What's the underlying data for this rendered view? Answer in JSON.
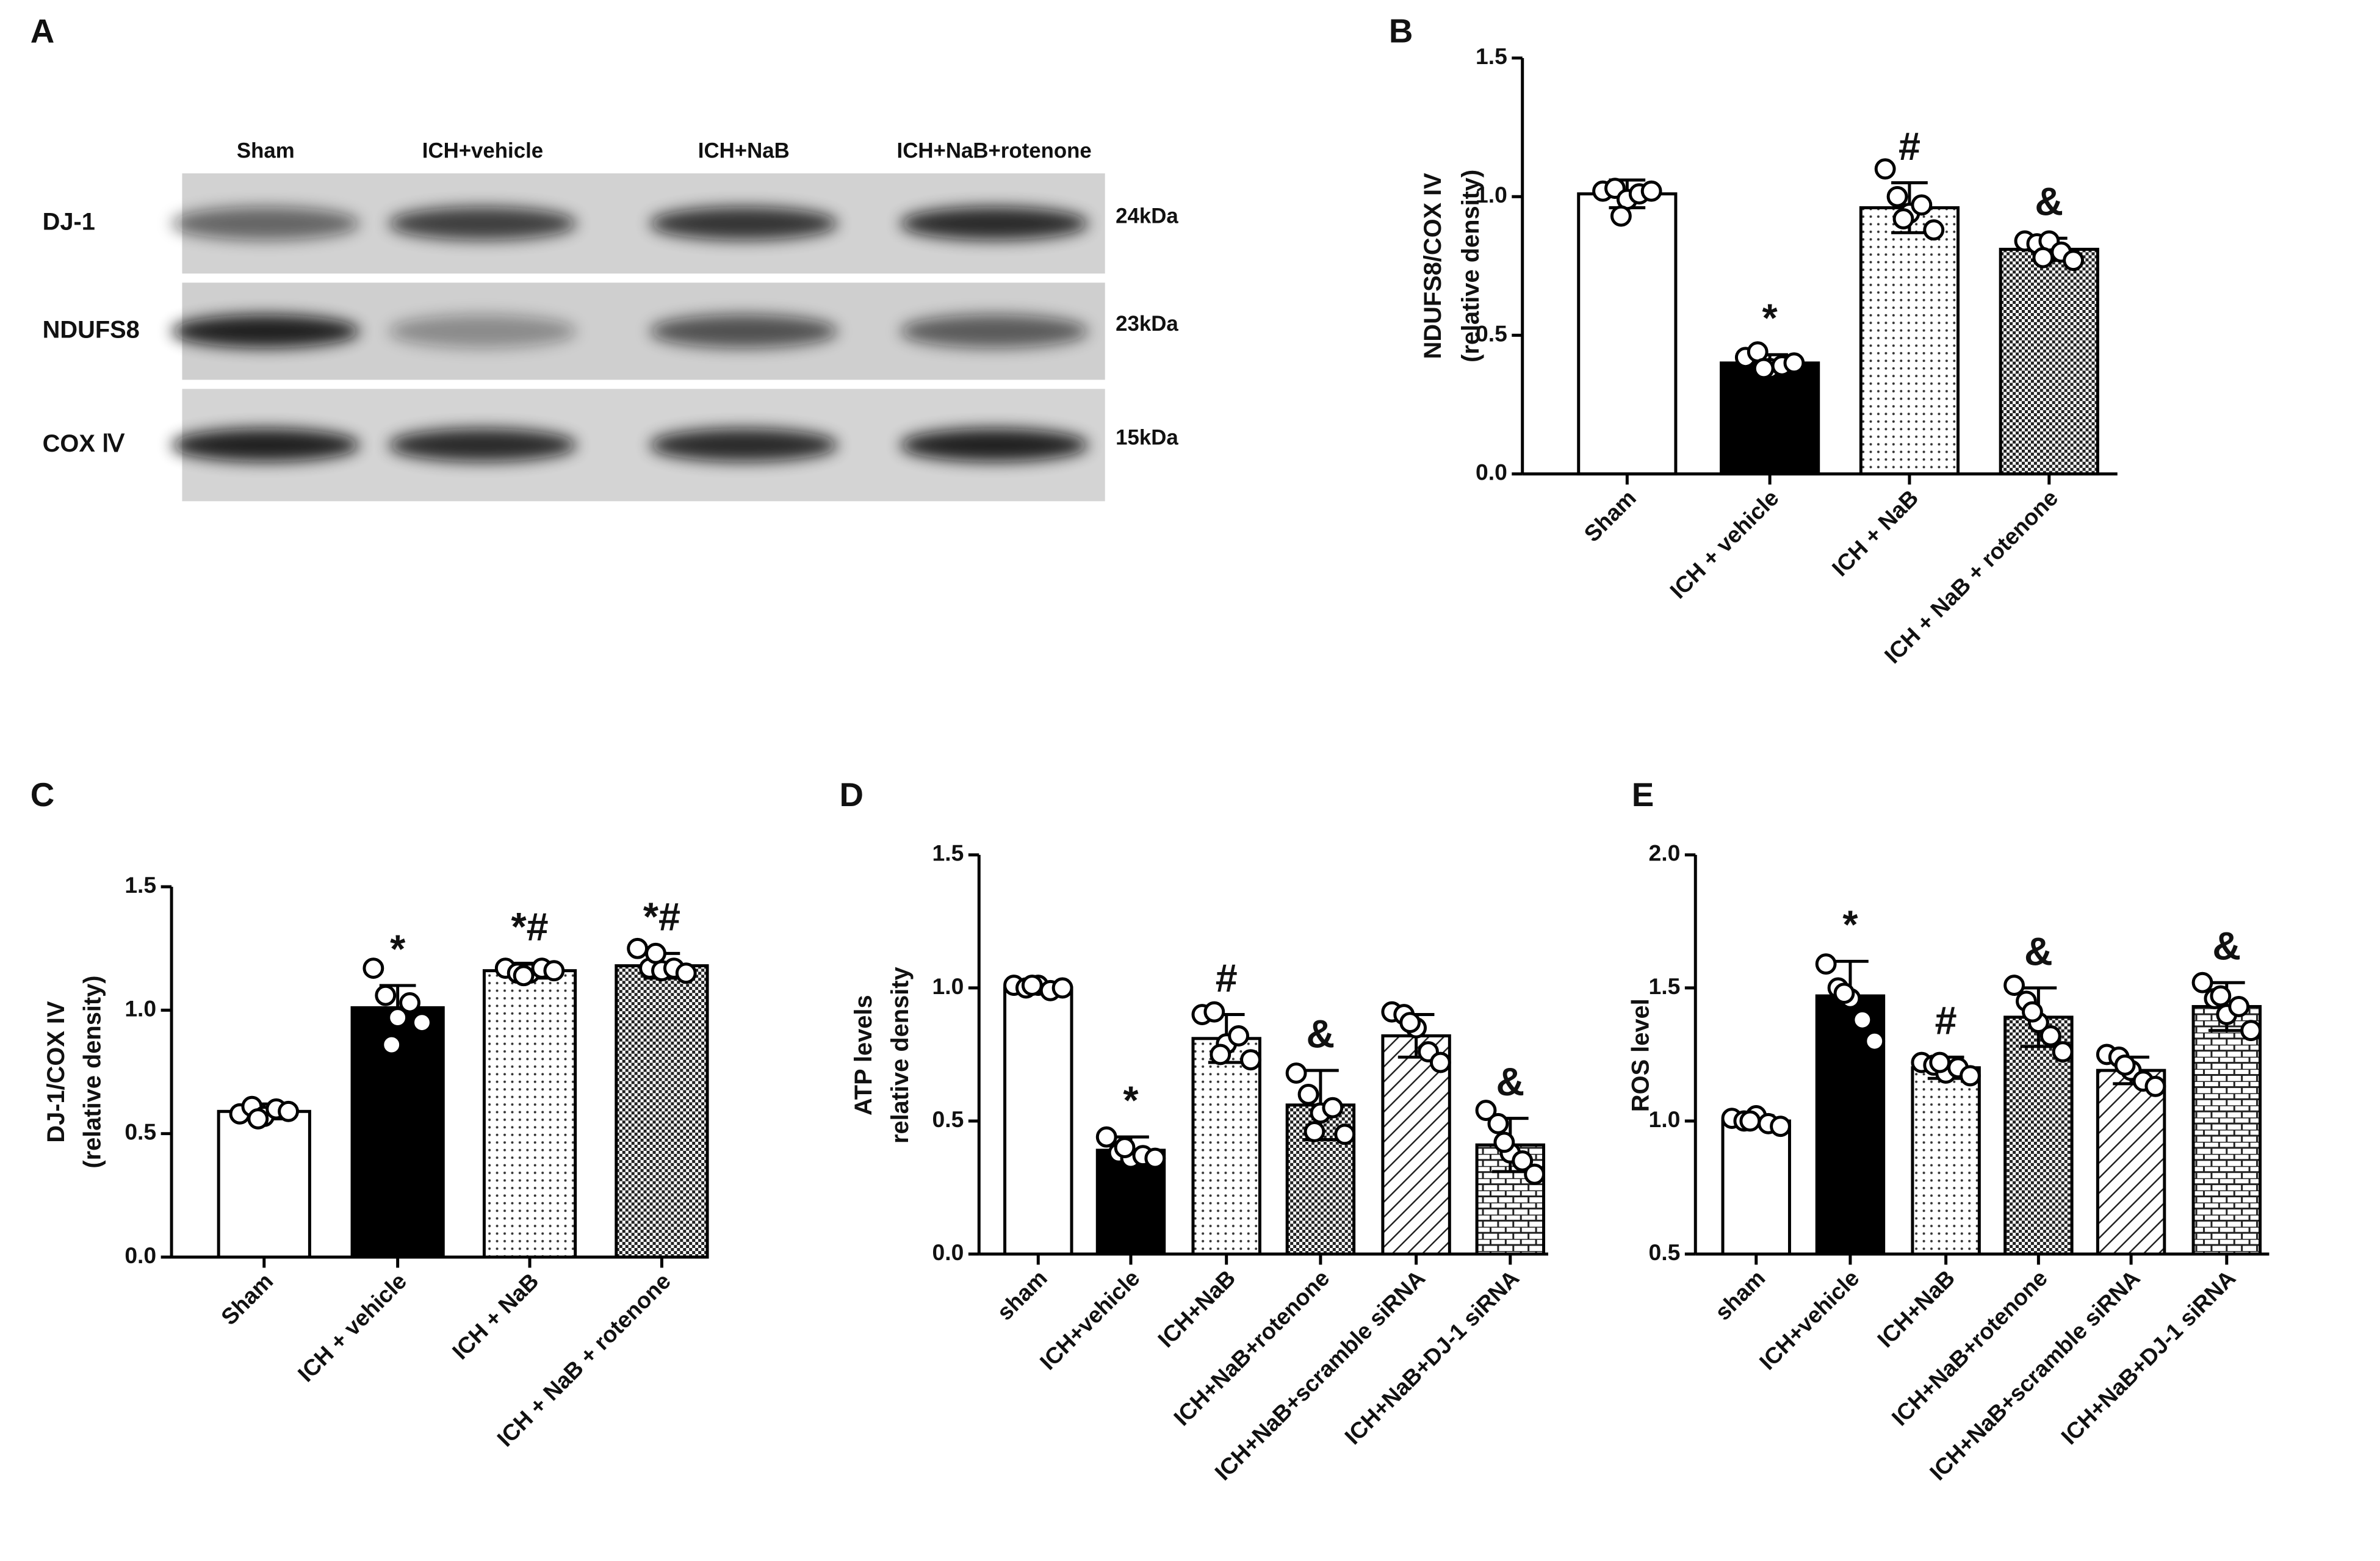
{
  "blot": {
    "panel_label": "A",
    "lanes": [
      "Sham",
      "ICH+vehicle",
      "ICH+NaB",
      "ICH+NaB+rotenone"
    ],
    "rows": [
      {
        "name": "DJ-1",
        "size": "24kDa"
      },
      {
        "name": "NDUFS8",
        "size": "23kDa"
      },
      {
        "name": "COX Ⅳ",
        "size": "15kDa"
      }
    ]
  },
  "chart_data": [
    {
      "type": "bar",
      "panel_label": "B",
      "ylabel": [
        "NDUFS8/COX IV",
        "(relative density)"
      ],
      "categories": [
        "Sham",
        "ICH + vehicle",
        "ICH + NaB",
        "ICH + NaB + rotenone"
      ],
      "values": [
        1.01,
        0.4,
        0.96,
        0.81
      ],
      "errors": [
        0.05,
        0.03,
        0.09,
        0.04
      ],
      "points": [
        [
          1.02,
          1.03,
          0.99,
          1.01,
          1.02,
          0.93
        ],
        [
          0.42,
          0.44,
          0.38,
          0.39,
          0.4,
          0.38
        ],
        [
          1.1,
          1.0,
          0.94,
          0.97,
          0.88,
          0.92
        ],
        [
          0.84,
          0.83,
          0.84,
          0.8,
          0.77,
          0.78
        ]
      ],
      "annotations": [
        null,
        "*",
        "#",
        "&"
      ],
      "patterns": [
        "white",
        "black",
        "dots",
        "checker"
      ],
      "ylim": [
        0,
        1.5
      ],
      "yticks": [
        {
          "value": 0,
          "label": "0.0"
        },
        0.5,
        {
          "value": 1,
          "label": "1.0"
        },
        1.5
      ]
    },
    {
      "type": "bar",
      "panel_label": "C",
      "ylabel": [
        "DJ-1/COX IV",
        "(relative density)"
      ],
      "categories": [
        "Sham",
        "ICH + vehicle",
        "ICH + NaB",
        "ICH + NaB + rotenone"
      ],
      "values": [
        0.59,
        1.01,
        1.16,
        1.18
      ],
      "errors": [
        0.03,
        0.09,
        0.03,
        0.05
      ],
      "points": [
        [
          0.58,
          0.61,
          0.57,
          0.6,
          0.59,
          0.56
        ],
        [
          1.17,
          1.06,
          0.97,
          1.03,
          0.95,
          0.86
        ],
        [
          1.17,
          1.15,
          1.15,
          1.17,
          1.16,
          1.14
        ],
        [
          1.25,
          1.17,
          1.16,
          1.17,
          1.15,
          1.23
        ]
      ],
      "annotations": [
        null,
        "*",
        "*#",
        "*#"
      ],
      "patterns": [
        "white",
        "black",
        "dots",
        "checker"
      ],
      "ylim": [
        0,
        1.5
      ],
      "yticks": [
        {
          "value": 0,
          "label": "0.0"
        },
        0.5,
        {
          "value": 1,
          "label": "1.0"
        },
        1.5
      ]
    },
    {
      "type": "bar",
      "panel_label": "D",
      "ylabel": [
        "ATP levels",
        "relative density"
      ],
      "categories": [
        "sham",
        "ICH+vehicle",
        "ICH+NaB",
        "ICH+NaB+rotenone",
        "ICH+NaB+scramble siRNA",
        "ICH+NaB+DJ-1 siRNA"
      ],
      "values": [
        1.0,
        0.39,
        0.81,
        0.56,
        0.82,
        0.41
      ],
      "errors": [
        0.02,
        0.05,
        0.09,
        0.13,
        0.08,
        0.1
      ],
      "points": [
        [
          1.01,
          1.0,
          1.01,
          0.99,
          1.0,
          1.01
        ],
        [
          0.44,
          0.38,
          0.36,
          0.37,
          0.36,
          0.4
        ],
        [
          0.9,
          0.91,
          0.79,
          0.82,
          0.73,
          0.75
        ],
        [
          0.68,
          0.6,
          0.53,
          0.55,
          0.45,
          0.46
        ],
        [
          0.91,
          0.9,
          0.85,
          0.76,
          0.72,
          0.87
        ],
        [
          0.54,
          0.49,
          0.38,
          0.35,
          0.3,
          0.42
        ]
      ],
      "annotations": [
        null,
        "*",
        "#",
        "&",
        null,
        "&"
      ],
      "patterns": [
        "white",
        "black",
        "dots",
        "checker",
        "diag",
        "brick"
      ],
      "ylim": [
        0,
        1.5
      ],
      "yticks": [
        {
          "value": 0,
          "label": "0.0"
        },
        0.5,
        {
          "value": 1,
          "label": "1.0"
        },
        1.5
      ]
    },
    {
      "type": "bar",
      "panel_label": "E",
      "ylabel": [
        "ROS level"
      ],
      "categories": [
        "sham",
        "ICH+vehicle",
        "ICH+NaB",
        "ICH+NaB+rotenone",
        "ICH+NaB+scramble siRNA",
        "ICH+NaB+DJ-1 siRNA"
      ],
      "values": [
        1.0,
        1.47,
        1.2,
        1.39,
        1.19,
        1.43
      ],
      "errors": [
        0.02,
        0.13,
        0.04,
        0.11,
        0.05,
        0.09
      ],
      "points": [
        [
          1.01,
          1.0,
          1.02,
          0.99,
          0.98,
          1.0
        ],
        [
          1.59,
          1.5,
          1.46,
          1.38,
          1.3,
          1.48
        ],
        [
          1.22,
          1.21,
          1.18,
          1.2,
          1.17,
          1.22
        ],
        [
          1.51,
          1.45,
          1.37,
          1.32,
          1.26,
          1.41
        ],
        [
          1.25,
          1.24,
          1.19,
          1.15,
          1.13,
          1.21
        ],
        [
          1.52,
          1.46,
          1.4,
          1.43,
          1.34,
          1.47
        ]
      ],
      "annotations": [
        null,
        "*",
        "#",
        "&",
        null,
        "&"
      ],
      "patterns": [
        "white",
        "black",
        "dots",
        "checker",
        "diag",
        "brick"
      ],
      "ylim": [
        0.5,
        2.0
      ],
      "yticks": [
        0.5,
        {
          "value": 1,
          "label": "1.0"
        },
        1.5,
        {
          "value": 2,
          "label": "2.0"
        }
      ]
    }
  ]
}
